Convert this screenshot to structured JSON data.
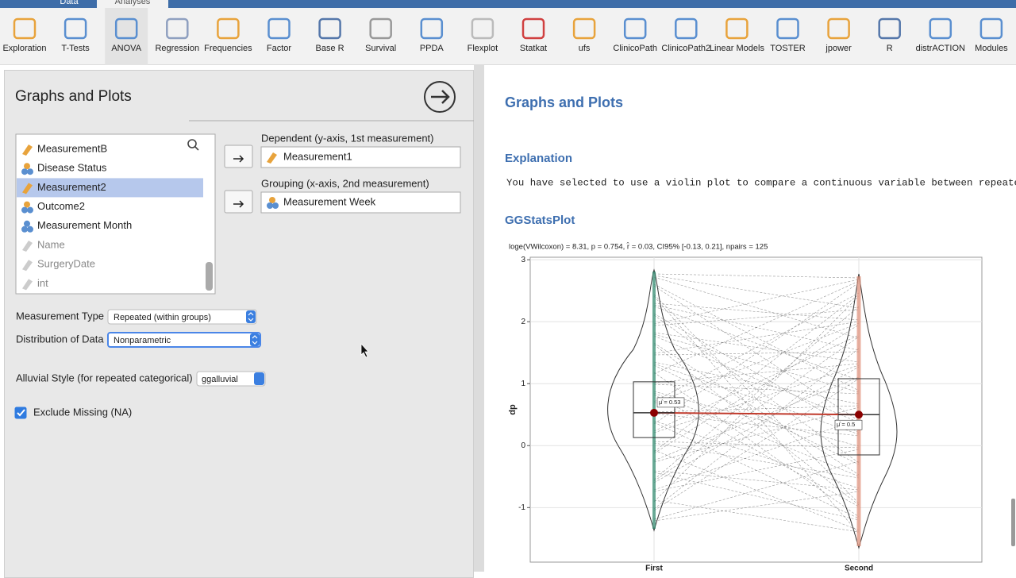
{
  "tabs": [
    "Data",
    "Analyses"
  ],
  "toolbar": [
    "Exploration",
    "T-Tests",
    "ANOVA",
    "Regression",
    "Frequencies",
    "Factor",
    "Base R",
    "Survival",
    "PPDA",
    "Flexplot",
    "Statkat",
    "ufs",
    "ClinicoPath",
    "ClinicoPath2",
    "Linear Models",
    "TOSTER",
    "jpower",
    "R",
    "distrACTION",
    "Modules"
  ],
  "options_panel": {
    "title": "Graphs and Plots",
    "variables": [
      {
        "name": "MeasurementB",
        "type": "continuous"
      },
      {
        "name": "Disease Status",
        "type": "nominal"
      },
      {
        "name": "Measurement2",
        "type": "continuous"
      },
      {
        "name": "Outcome2",
        "type": "nominal"
      },
      {
        "name": "Measurement Month",
        "type": "ordinal"
      },
      {
        "name": "Name",
        "type": "text"
      },
      {
        "name": "SurgeryDate",
        "type": "text"
      },
      {
        "name": "int",
        "type": "text"
      }
    ],
    "selected_index": 2,
    "dependent_label": "Dependent (y-axis, 1st measurement)",
    "dependent": "Measurement1",
    "grouping_label": "Grouping (x-axis, 2nd measurement)",
    "grouping": "Measurement Week",
    "measurement_type_label": "Measurement Type",
    "measurement_type": "Repeated (within groups)",
    "distribution_label": "Distribution of Data",
    "distribution": "Nonparametric",
    "alluvial_label": "Alluvial Style (for repeated categorical)",
    "alluvial": "ggalluvial",
    "exclude_missing_label": "Exclude Missing (NA)",
    "exclude_missing": true
  },
  "results": {
    "title": "Graphs and Plots",
    "explanation_heading": "Explanation",
    "explanation": "You have selected to use a violin plot to compare a continuous variable between repeate",
    "plot_heading": "GGStatsPlot"
  },
  "chart_data": {
    "type": "violin",
    "subtitle": "loge(VWilcoxon) = 8.31, p = 0.754, r̂ = 0.03, CI95% [-0.13, 0.21], npairs = 125",
    "ylabel": "dp",
    "categories": [
      "First",
      "Second"
    ],
    "values": [
      0.53,
      0.5
    ],
    "value_labels": [
      "μ̂ = 0.53",
      "μ̂ = 0.5"
    ],
    "boxes": [
      {
        "q1": 0.13,
        "q3": 1.03
      },
      {
        "q1": -0.15,
        "q3": 1.08
      }
    ],
    "ylim": [
      -1.88,
      3.04
    ],
    "yticks": [
      -1,
      0,
      1,
      2,
      3
    ],
    "grid": true,
    "color": "#8b0000"
  }
}
